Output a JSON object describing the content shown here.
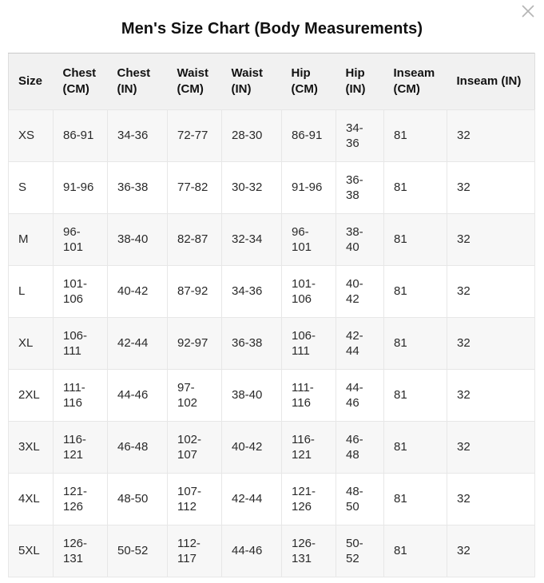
{
  "modal": {
    "title": "Men's Size Chart (Body Measurements)",
    "close_icon": "close-x-icon"
  },
  "table": {
    "columns": [
      "Size",
      "Chest (CM)",
      "Chest (IN)",
      "Waist (CM)",
      "Waist (IN)",
      "Hip (CM)",
      "Hip (IN)",
      "Inseam (CM)",
      "Inseam (IN)"
    ],
    "rows": [
      [
        "XS",
        "86-91",
        "34-36",
        "72-77",
        "28-30",
        "86-91",
        "34-36",
        "81",
        "32"
      ],
      [
        "S",
        "91-96",
        "36-38",
        "77-82",
        "30-32",
        "91-96",
        "36-38",
        "81",
        "32"
      ],
      [
        "M",
        "96-101",
        "38-40",
        "82-87",
        "32-34",
        "96-101",
        "38-40",
        "81",
        "32"
      ],
      [
        "L",
        "101-106",
        "40-42",
        "87-92",
        "34-36",
        "101-106",
        "40-42",
        "81",
        "32"
      ],
      [
        "XL",
        "106-111",
        "42-44",
        "92-97",
        "36-38",
        "106-111",
        "42-44",
        "81",
        "32"
      ],
      [
        "2XL",
        "111-116",
        "44-46",
        "97-102",
        "38-40",
        "111-116",
        "44-46",
        "81",
        "32"
      ],
      [
        "3XL",
        "116-121",
        "46-48",
        "102-107",
        "40-42",
        "116-121",
        "46-48",
        "81",
        "32"
      ],
      [
        "4XL",
        "121-126",
        "48-50",
        "107-112",
        "42-44",
        "121-126",
        "48-50",
        "81",
        "32"
      ],
      [
        "5XL",
        "126-131",
        "50-52",
        "112-117",
        "44-46",
        "126-131",
        "50-52",
        "81",
        "32"
      ]
    ]
  },
  "colors": {
    "header_bg": "#f1f1f1",
    "stripe_bg": "#f7f7f7",
    "border": "#e7e7e7",
    "outer_border": "#dedede",
    "top_border": "#c9c9c9",
    "text": "#2a2a2a",
    "title_text": "#111111",
    "close_icon": "#b5b5b5"
  }
}
